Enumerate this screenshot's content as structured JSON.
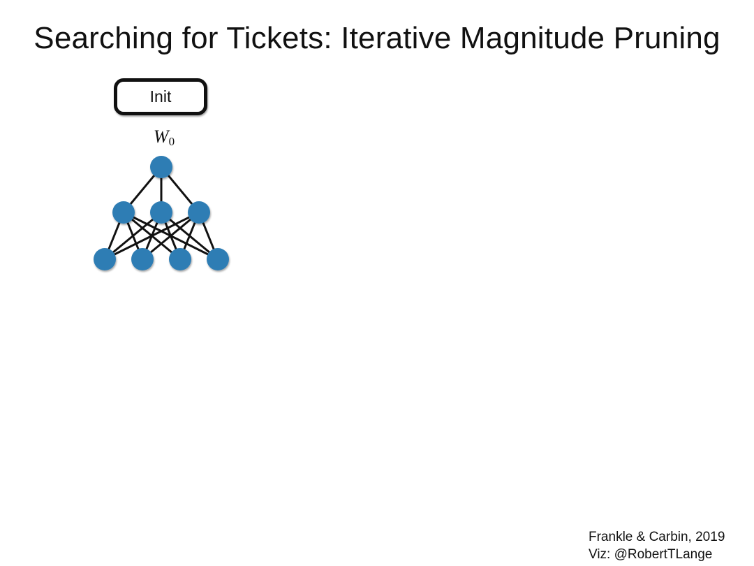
{
  "title": "Searching for Tickets: Iterative Magnitude Pruning",
  "step_box": {
    "label": "Init"
  },
  "weights_label": {
    "symbol": "W",
    "subscript": "0"
  },
  "network": {
    "layers": [
      1,
      3,
      4
    ],
    "node_color": "#2f7db4",
    "edge_color": "#111111",
    "fully_connected": true
  },
  "credits": {
    "line1": "Frankle & Carbin, 2019",
    "line2": "Viz: @RobertTLange"
  }
}
